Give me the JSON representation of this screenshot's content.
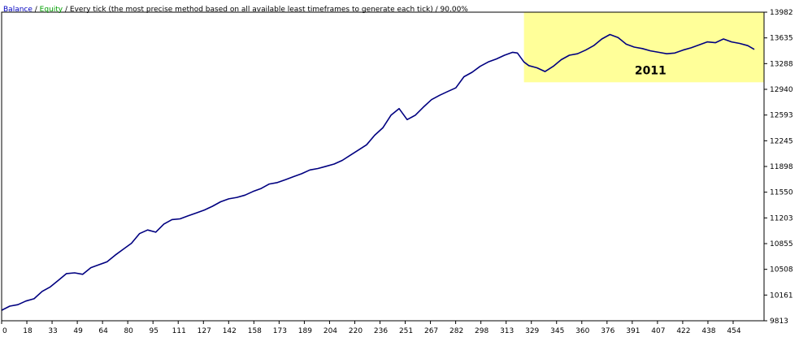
{
  "header": {
    "balance_label": "Balance",
    "sep1": " / ",
    "equity_label": "Equity",
    "sep2": " / ",
    "description": "Every tick (the most precise method based on all available least timeframes to generate each tick)",
    "sep3": " / ",
    "quality": "90.00%"
  },
  "colors": {
    "balance_text": "#0000c0",
    "equity_text": "#00a000",
    "line": "#000080",
    "highlight": "#ffff99",
    "frame": "#000000",
    "grid_tick": "#808080"
  },
  "annotation": {
    "label": "2011"
  },
  "chart_data": {
    "type": "line",
    "title": "",
    "xlabel": "",
    "ylabel": "",
    "x_ticks": [
      "0",
      "18",
      "33",
      "49",
      "64",
      "80",
      "95",
      "111",
      "127",
      "142",
      "158",
      "173",
      "189",
      "204",
      "220",
      "236",
      "251",
      "267",
      "282",
      "298",
      "313",
      "329",
      "345",
      "360",
      "376",
      "391",
      "407",
      "422",
      "438",
      "454"
    ],
    "y_ticks": [
      "13982",
      "13635",
      "13288",
      "12940",
      "12593",
      "12245",
      "11898",
      "11550",
      "11203",
      "10855",
      "10508",
      "10161",
      "9813"
    ],
    "xlim": [
      0,
      470
    ],
    "ylim": [
      9813,
      13982
    ],
    "highlight_region": {
      "x": [
        322,
        470
      ],
      "y": [
        13035,
        13982
      ],
      "label": "2011"
    },
    "series": [
      {
        "name": "",
        "x": [
          0,
          5,
          10,
          15,
          20,
          25,
          30,
          35,
          40,
          45,
          50,
          55,
          60,
          65,
          70,
          75,
          80,
          85,
          90,
          95,
          100,
          105,
          110,
          115,
          120,
          125,
          130,
          135,
          140,
          145,
          150,
          155,
          160,
          165,
          170,
          175,
          180,
          185,
          190,
          195,
          200,
          205,
          210,
          215,
          220,
          225,
          230,
          235,
          240,
          245,
          250,
          255,
          260,
          265,
          270,
          275,
          280,
          285,
          290,
          295,
          300,
          305,
          310,
          315,
          318,
          322,
          325,
          330,
          335,
          340,
          345,
          350,
          355,
          360,
          365,
          370,
          375,
          380,
          385,
          390,
          395,
          400,
          405,
          410,
          415,
          420,
          425,
          430,
          435,
          440,
          445,
          450,
          455,
          460,
          464
        ],
        "values": [
          9955,
          10010,
          10030,
          10080,
          10110,
          10210,
          10270,
          10360,
          10450,
          10460,
          10440,
          10530,
          10570,
          10610,
          10700,
          10780,
          10860,
          10990,
          11040,
          11010,
          11120,
          11180,
          11190,
          11230,
          11270,
          11310,
          11360,
          11420,
          11460,
          11480,
          11510,
          11560,
          11600,
          11660,
          11680,
          11720,
          11760,
          11800,
          11850,
          11870,
          11900,
          11930,
          11980,
          12050,
          12120,
          12190,
          12320,
          12420,
          12590,
          12680,
          12530,
          12590,
          12700,
          12800,
          12860,
          12910,
          12960,
          13110,
          13170,
          13250,
          13310,
          13350,
          13400,
          13440,
          13430,
          13310,
          13260,
          13230,
          13180,
          13250,
          13340,
          13400,
          13420,
          13470,
          13530,
          13620,
          13680,
          13640,
          13550,
          13510,
          13490,
          13460,
          13440,
          13420,
          13430,
          13470,
          13500,
          13540,
          13580,
          13570,
          13620,
          13580,
          13560,
          13530,
          13480
        ]
      }
    ]
  }
}
